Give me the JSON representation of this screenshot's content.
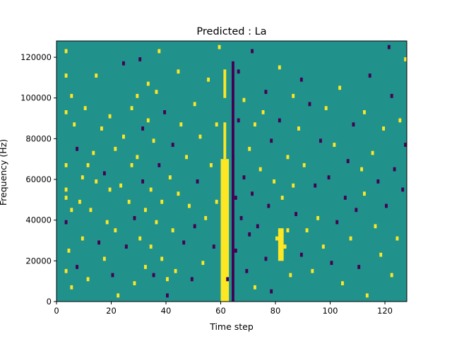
{
  "chart_data": {
    "type": "heatmap",
    "title": "Predicted : La",
    "xlabel": "Time step",
    "ylabel": "Frequency (Hz)",
    "xlim": [
      0,
      128
    ],
    "ylim": [
      0,
      128000
    ],
    "x_ticks": [
      0,
      20,
      40,
      60,
      80,
      100,
      120
    ],
    "y_ticks": [
      0,
      20000,
      40000,
      60000,
      80000,
      100000,
      120000
    ],
    "x_tick_labels": [
      "0",
      "20",
      "40",
      "60",
      "80",
      "100",
      "120"
    ],
    "y_tick_labels": [
      "0",
      "20000",
      "40000",
      "60000",
      "80000",
      "100000",
      "120000"
    ],
    "colormap": "viridis",
    "colors": {
      "low": "#440154",
      "mid": "#21918c",
      "high": "#fde725"
    },
    "grid": false,
    "background_level": "mid",
    "cells": [
      {
        "t": 3,
        "f": 122000,
        "level": "high"
      },
      {
        "t": 3,
        "f": 110000,
        "level": "high"
      },
      {
        "t": 3,
        "f": 92000,
        "level": "high"
      },
      {
        "t": 3,
        "f": 66000,
        "level": "high"
      },
      {
        "t": 3,
        "f": 54000,
        "level": "high"
      },
      {
        "t": 3,
        "f": 50000,
        "level": "high"
      },
      {
        "t": 3,
        "f": 38000,
        "level": "low"
      },
      {
        "t": 3,
        "f": 14000,
        "level": "high"
      },
      {
        "t": 4,
        "f": 24000,
        "level": "high"
      },
      {
        "t": 5,
        "f": 100000,
        "level": "high"
      },
      {
        "t": 5,
        "f": 44000,
        "level": "high"
      },
      {
        "t": 5,
        "f": 6000,
        "level": "high"
      },
      {
        "t": 6,
        "f": 86000,
        "level": "high"
      },
      {
        "t": 7,
        "f": 74000,
        "level": "low"
      },
      {
        "t": 7,
        "f": 16000,
        "level": "low"
      },
      {
        "t": 8,
        "f": 48000,
        "level": "high"
      },
      {
        "t": 9,
        "f": 60000,
        "level": "high"
      },
      {
        "t": 9,
        "f": 30000,
        "level": "high"
      },
      {
        "t": 10,
        "f": 94000,
        "level": "high"
      },
      {
        "t": 11,
        "f": 66000,
        "level": "high"
      },
      {
        "t": 11,
        "f": 10000,
        "level": "high"
      },
      {
        "t": 12,
        "f": 44000,
        "level": "high"
      },
      {
        "t": 13,
        "f": 72000,
        "level": "high"
      },
      {
        "t": 14,
        "f": 110000,
        "level": "high"
      },
      {
        "t": 14,
        "f": 58000,
        "level": "high"
      },
      {
        "t": 15,
        "f": 28000,
        "level": "low"
      },
      {
        "t": 16,
        "f": 84000,
        "level": "high"
      },
      {
        "t": 17,
        "f": 62000,
        "level": "low"
      },
      {
        "t": 17,
        "f": 20000,
        "level": "high"
      },
      {
        "t": 18,
        "f": 38000,
        "level": "high"
      },
      {
        "t": 19,
        "f": 90000,
        "level": "high"
      },
      {
        "t": 19,
        "f": 54000,
        "level": "high"
      },
      {
        "t": 20,
        "f": 12000,
        "level": "low"
      },
      {
        "t": 21,
        "f": 74000,
        "level": "high"
      },
      {
        "t": 21,
        "f": 34000,
        "level": "high"
      },
      {
        "t": 22,
        "f": 2000,
        "level": "high"
      },
      {
        "t": 23,
        "f": 56000,
        "level": "high"
      },
      {
        "t": 24,
        "f": 116000,
        "level": "low"
      },
      {
        "t": 24,
        "f": 80000,
        "level": "high"
      },
      {
        "t": 25,
        "f": 26000,
        "level": "low"
      },
      {
        "t": 26,
        "f": 48000,
        "level": "high"
      },
      {
        "t": 27,
        "f": 94000,
        "level": "high"
      },
      {
        "t": 27,
        "f": 66000,
        "level": "high"
      },
      {
        "t": 28,
        "f": 40000,
        "level": "low"
      },
      {
        "t": 28,
        "f": 8000,
        "level": "high"
      },
      {
        "t": 29,
        "f": 100000,
        "level": "high"
      },
      {
        "t": 29,
        "f": 70000,
        "level": "high"
      },
      {
        "t": 30,
        "f": 118000,
        "level": "low"
      },
      {
        "t": 30,
        "f": 30000,
        "level": "high"
      },
      {
        "t": 31,
        "f": 84000,
        "level": "low"
      },
      {
        "t": 31,
        "f": 58000,
        "level": "low"
      },
      {
        "t": 32,
        "f": 16000,
        "level": "high"
      },
      {
        "t": 32,
        "f": 44000,
        "level": "high"
      },
      {
        "t": 33,
        "f": 106000,
        "level": "high"
      },
      {
        "t": 33,
        "f": 88000,
        "level": "high"
      },
      {
        "t": 34,
        "f": 26000,
        "level": "high"
      },
      {
        "t": 34,
        "f": 54000,
        "level": "high"
      },
      {
        "t": 35,
        "f": 12000,
        "level": "low"
      },
      {
        "t": 35,
        "f": 78000,
        "level": "high"
      },
      {
        "t": 36,
        "f": 102000,
        "level": "high"
      },
      {
        "t": 36,
        "f": 38000,
        "level": "high"
      },
      {
        "t": 37,
        "f": 122000,
        "level": "high"
      },
      {
        "t": 37,
        "f": 66000,
        "level": "low"
      },
      {
        "t": 38,
        "f": 48000,
        "level": "high"
      },
      {
        "t": 38,
        "f": 20000,
        "level": "high"
      },
      {
        "t": 39,
        "f": 92000,
        "level": "low"
      },
      {
        "t": 40,
        "f": 10000,
        "level": "high"
      },
      {
        "t": 40,
        "f": 2000,
        "level": "low"
      },
      {
        "t": 41,
        "f": 60000,
        "level": "high"
      },
      {
        "t": 42,
        "f": 34000,
        "level": "high"
      },
      {
        "t": 42,
        "f": 76000,
        "level": "low"
      },
      {
        "t": 43,
        "f": 14000,
        "level": "high"
      },
      {
        "t": 44,
        "f": 112000,
        "level": "high"
      },
      {
        "t": 44,
        "f": 52000,
        "level": "high"
      },
      {
        "t": 45,
        "f": 86000,
        "level": "high"
      },
      {
        "t": 46,
        "f": 28000,
        "level": "low"
      },
      {
        "t": 47,
        "f": 70000,
        "level": "high"
      },
      {
        "t": 48,
        "f": 46000,
        "level": "high"
      },
      {
        "t": 49,
        "f": 10000,
        "level": "low"
      },
      {
        "t": 50,
        "f": 96000,
        "level": "high"
      },
      {
        "t": 50,
        "f": 36000,
        "level": "low"
      },
      {
        "t": 51,
        "f": 58000,
        "level": "low"
      },
      {
        "t": 52,
        "f": 80000,
        "level": "high"
      },
      {
        "t": 53,
        "f": 18000,
        "level": "high"
      },
      {
        "t": 54,
        "f": 40000,
        "level": "high"
      },
      {
        "t": 55,
        "f": 108000,
        "level": "high"
      },
      {
        "t": 56,
        "f": 66000,
        "level": "high"
      },
      {
        "t": 57,
        "f": 26000,
        "level": "low"
      },
      {
        "t": 58,
        "f": 86000,
        "level": "high"
      },
      {
        "t": 58,
        "f": 48000,
        "level": "high"
      },
      {
        "t": 59,
        "f": 124000,
        "level": "high"
      },
      {
        "t": 62,
        "f": 10000,
        "level": "low"
      },
      {
        "t": 64,
        "f": 70000,
        "level": "low"
      },
      {
        "t": 65,
        "f": 50000,
        "level": "low"
      },
      {
        "t": 65,
        "f": 24000,
        "level": "low"
      },
      {
        "t": 66,
        "f": 112000,
        "level": "low"
      },
      {
        "t": 66,
        "f": 88000,
        "level": "low"
      },
      {
        "t": 67,
        "f": 40000,
        "level": "low"
      },
      {
        "t": 68,
        "f": 60000,
        "level": "low"
      },
      {
        "t": 68,
        "f": 98000,
        "level": "high"
      },
      {
        "t": 69,
        "f": 14000,
        "level": "low"
      },
      {
        "t": 70,
        "f": 74000,
        "level": "high"
      },
      {
        "t": 70,
        "f": 32000,
        "level": "low"
      },
      {
        "t": 71,
        "f": 122000,
        "level": "low"
      },
      {
        "t": 71,
        "f": 52000,
        "level": "low"
      },
      {
        "t": 72,
        "f": 86000,
        "level": "high"
      },
      {
        "t": 72,
        "f": 6000,
        "level": "high"
      },
      {
        "t": 73,
        "f": 36000,
        "level": "low"
      },
      {
        "t": 74,
        "f": 64000,
        "level": "high"
      },
      {
        "t": 75,
        "f": 92000,
        "level": "high"
      },
      {
        "t": 76,
        "f": 20000,
        "level": "low"
      },
      {
        "t": 76,
        "f": 102000,
        "level": "low"
      },
      {
        "t": 77,
        "f": 46000,
        "level": "low"
      },
      {
        "t": 78,
        "f": 78000,
        "level": "low"
      },
      {
        "t": 78,
        "f": 4000,
        "level": "low"
      },
      {
        "t": 79,
        "f": 58000,
        "level": "high"
      },
      {
        "t": 80,
        "f": 30000,
        "level": "high"
      },
      {
        "t": 81,
        "f": 114000,
        "level": "high"
      },
      {
        "t": 81,
        "f": 88000,
        "level": "low"
      },
      {
        "t": 82,
        "f": 50000,
        "level": "high"
      },
      {
        "t": 83,
        "f": 26000,
        "level": "high"
      },
      {
        "t": 84,
        "f": 70000,
        "level": "high"
      },
      {
        "t": 84,
        "f": 34000,
        "level": "high"
      },
      {
        "t": 85,
        "f": 12000,
        "level": "high"
      },
      {
        "t": 86,
        "f": 100000,
        "level": "high"
      },
      {
        "t": 86,
        "f": 56000,
        "level": "high"
      },
      {
        "t": 87,
        "f": 42000,
        "level": "low"
      },
      {
        "t": 88,
        "f": 84000,
        "level": "high"
      },
      {
        "t": 89,
        "f": 22000,
        "level": "low"
      },
      {
        "t": 89,
        "f": 108000,
        "level": "low"
      },
      {
        "t": 90,
        "f": 66000,
        "level": "high"
      },
      {
        "t": 91,
        "f": 34000,
        "level": "high"
      },
      {
        "t": 92,
        "f": 96000,
        "level": "low"
      },
      {
        "t": 93,
        "f": 14000,
        "level": "high"
      },
      {
        "t": 94,
        "f": 56000,
        "level": "low"
      },
      {
        "t": 95,
        "f": 40000,
        "level": "high"
      },
      {
        "t": 96,
        "f": 78000,
        "level": "low"
      },
      {
        "t": 97,
        "f": 26000,
        "level": "high"
      },
      {
        "t": 98,
        "f": 94000,
        "level": "high"
      },
      {
        "t": 99,
        "f": 60000,
        "level": "low"
      },
      {
        "t": 100,
        "f": 18000,
        "level": "low"
      },
      {
        "t": 101,
        "f": 76000,
        "level": "high"
      },
      {
        "t": 102,
        "f": 38000,
        "level": "low"
      },
      {
        "t": 103,
        "f": 104000,
        "level": "high"
      },
      {
        "t": 104,
        "f": 8000,
        "level": "high"
      },
      {
        "t": 105,
        "f": 50000,
        "level": "low"
      },
      {
        "t": 106,
        "f": 68000,
        "level": "low"
      },
      {
        "t": 107,
        "f": 30000,
        "level": "high"
      },
      {
        "t": 108,
        "f": 86000,
        "level": "low"
      },
      {
        "t": 109,
        "f": 44000,
        "level": "low"
      },
      {
        "t": 110,
        "f": 16000,
        "level": "low"
      },
      {
        "t": 111,
        "f": 64000,
        "level": "high"
      },
      {
        "t": 112,
        "f": 92000,
        "level": "high"
      },
      {
        "t": 112,
        "f": 52000,
        "level": "high"
      },
      {
        "t": 113,
        "f": 2000,
        "level": "high"
      },
      {
        "t": 114,
        "f": 110000,
        "level": "low"
      },
      {
        "t": 115,
        "f": 72000,
        "level": "high"
      },
      {
        "t": 116,
        "f": 36000,
        "level": "high"
      },
      {
        "t": 117,
        "f": 58000,
        "level": "low"
      },
      {
        "t": 118,
        "f": 22000,
        "level": "high"
      },
      {
        "t": 119,
        "f": 84000,
        "level": "high"
      },
      {
        "t": 120,
        "f": 46000,
        "level": "low"
      },
      {
        "t": 121,
        "f": 124000,
        "level": "low"
      },
      {
        "t": 122,
        "f": 100000,
        "level": "low"
      },
      {
        "t": 122,
        "f": 12000,
        "level": "high"
      },
      {
        "t": 123,
        "f": 64000,
        "level": "low"
      },
      {
        "t": 124,
        "f": 30000,
        "level": "high"
      },
      {
        "t": 125,
        "f": 88000,
        "level": "high"
      },
      {
        "t": 126,
        "f": 54000,
        "level": "low"
      },
      {
        "t": 127,
        "f": 118000,
        "level": "high"
      },
      {
        "t": 127,
        "f": 76000,
        "level": "low"
      }
    ],
    "bands": [
      {
        "t_start": 60,
        "t_end": 63,
        "f_start": 0,
        "f_end": 70000,
        "level": "high"
      },
      {
        "t_start": 61,
        "t_end": 62,
        "f_start": 70000,
        "f_end": 88000,
        "level": "high"
      },
      {
        "t_start": 61,
        "t_end": 62,
        "f_start": 100000,
        "f_end": 114000,
        "level": "high"
      },
      {
        "t_start": 64,
        "t_end": 65,
        "f_start": 0,
        "f_end": 118000,
        "level": "low"
      },
      {
        "t_start": 81,
        "t_end": 83,
        "f_start": 20000,
        "f_end": 36000,
        "level": "high"
      }
    ]
  }
}
